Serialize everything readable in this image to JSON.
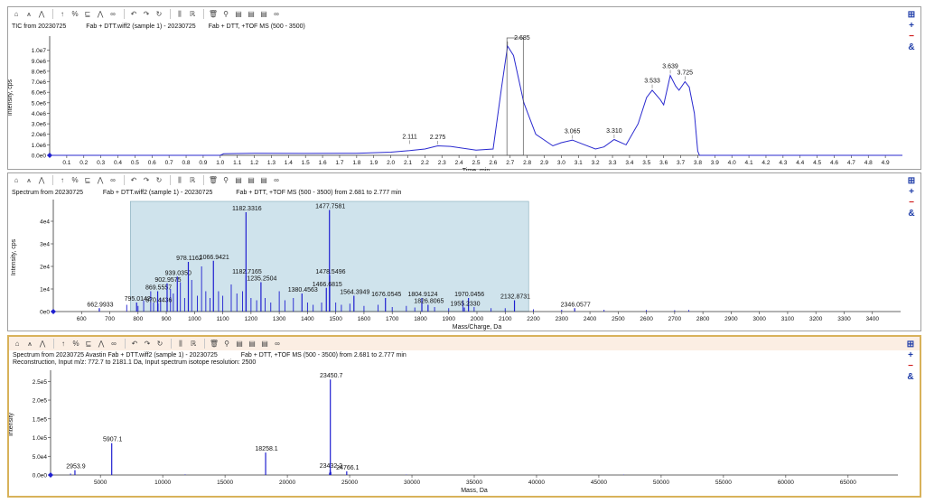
{
  "toolbar_icons": [
    "home-icon",
    "graph-icon",
    "stack-icon",
    "arrow-up-icon",
    "percent-icon",
    "peak-label-icon",
    "peak-icon",
    "link-icon",
    "undo-icon",
    "redo-icon",
    "redo-alt-icon",
    "bar-chart-icon",
    "reconstruct-icon",
    "trash-icon",
    "magnify-icon",
    "table-icon",
    "table-icon",
    "table-icon",
    "binoculars-icon"
  ],
  "side_tools": {
    "pin": "⊞",
    "plus": "+",
    "minus": "−",
    "link": "&"
  },
  "pane1": {
    "title_left": "TIC from 20230725",
    "title_mid": "Fab + DTT.wiff2 (sample 1) - 20230725",
    "title_right": "Fab + DTT, +TOF MS (500 - 3500)",
    "chart_data": {
      "type": "line",
      "xlabel": "Time, min",
      "ylabel": "Intensity, cps",
      "xlim": [
        0,
        5.0
      ],
      "ylim": [
        0,
        11000000.0
      ],
      "xticks": [
        "0.1",
        "0.2",
        "0.3",
        "0.4",
        "0.5",
        "0.6",
        "0.7",
        "0.8",
        "0.9",
        "1.0",
        "1.1",
        "1.2",
        "1.3",
        "1.4",
        "1.5",
        "1.6",
        "1.7",
        "1.8",
        "1.9",
        "2.0",
        "2.1",
        "2.2",
        "2.3",
        "2.4",
        "2.5",
        "2.6",
        "2.7",
        "2.8",
        "2.9",
        "3.0",
        "3.1",
        "3.2",
        "3.3",
        "3.4",
        "3.5",
        "3.6",
        "3.7",
        "3.8",
        "3.9",
        "4.0",
        "4.1",
        "4.2",
        "4.3",
        "4.4",
        "4.5",
        "4.6",
        "4.7",
        "4.8",
        "4.9"
      ],
      "yticks": [
        {
          "v": 0,
          "label": "0.0e0"
        },
        {
          "v": 1000000.0,
          "label": "1.0e6"
        },
        {
          "v": 2000000.0,
          "label": "2.0e6"
        },
        {
          "v": 3000000.0,
          "label": "3.0e6"
        },
        {
          "v": 4000000.0,
          "label": "4.0e6"
        },
        {
          "v": 5000000.0,
          "label": "5.0e6"
        },
        {
          "v": 6000000.0,
          "label": "6.0e6"
        },
        {
          "v": 7000000.0,
          "label": "7.0e6"
        },
        {
          "v": 8000000.0,
          "label": "8.0e6"
        },
        {
          "v": 9000000.0,
          "label": "9.0e6"
        },
        {
          "v": 10000000.0,
          "label": "1.0e7"
        }
      ],
      "points": [
        [
          0.0,
          0
        ],
        [
          1.0,
          0
        ],
        [
          1.02,
          150000.0
        ],
        [
          1.2,
          200000.0
        ],
        [
          1.5,
          180000.0
        ],
        [
          1.8,
          200000.0
        ],
        [
          2.0,
          300000.0
        ],
        [
          2.11,
          450000.0
        ],
        [
          2.2,
          600000.0
        ],
        [
          2.275,
          900000.0
        ],
        [
          2.35,
          850000.0
        ],
        [
          2.5,
          500000.0
        ],
        [
          2.6,
          600000.0
        ],
        [
          2.65,
          6500000.0
        ],
        [
          2.685,
          10400000.0
        ],
        [
          2.72,
          9500000.0
        ],
        [
          2.78,
          5000000.0
        ],
        [
          2.85,
          2000000.0
        ],
        [
          2.95,
          900000.0
        ],
        [
          3.0,
          1200000.0
        ],
        [
          3.065,
          1450000.0
        ],
        [
          3.12,
          1100000.0
        ],
        [
          3.2,
          600000.0
        ],
        [
          3.25,
          800000.0
        ],
        [
          3.31,
          1500000.0
        ],
        [
          3.38,
          1000000.0
        ],
        [
          3.45,
          3000000.0
        ],
        [
          3.5,
          5500000.0
        ],
        [
          3.533,
          6200000.0
        ],
        [
          3.58,
          5300000.0
        ],
        [
          3.6,
          4800000.0
        ],
        [
          3.639,
          7600000.0
        ],
        [
          3.67,
          6600000.0
        ],
        [
          3.69,
          6200000.0
        ],
        [
          3.725,
          7000000.0
        ],
        [
          3.75,
          6500000.0
        ],
        [
          3.78,
          4000000.0
        ],
        [
          3.8,
          400000.0
        ],
        [
          3.81,
          0
        ],
        [
          5.0,
          0
        ]
      ],
      "annotations": [
        {
          "x": 2.111,
          "y": 1000000.0,
          "label": "2.111"
        },
        {
          "x": 2.275,
          "y": 950000.0,
          "label": "2.275"
        },
        {
          "x": 2.685,
          "y": 10400000.0,
          "label": "2.685"
        },
        {
          "x": 3.065,
          "y": 1500000.0,
          "label": "3.065"
        },
        {
          "x": 3.31,
          "y": 1550000.0,
          "label": "3.310"
        },
        {
          "x": 3.533,
          "y": 6300000.0,
          "label": "3.533"
        },
        {
          "x": 3.639,
          "y": 7700000.0,
          "label": "3.639"
        },
        {
          "x": 3.725,
          "y": 7100000.0,
          "label": "3.725"
        }
      ],
      "selection": [
        2.681,
        2.777
      ],
      "color": "#2a2acf"
    }
  },
  "pane2": {
    "title_left": "Spectrum from 20230725",
    "title_mid": "Fab + DTT.wiff2 (sample 1) - 20230725",
    "title_right": "Fab + DTT, +TOF MS (500 - 3500) from 2.681 to 2.777 min",
    "chart_data": {
      "type": "bar",
      "xlabel": "Mass/Charge, Da",
      "ylabel": "Intensity, cps",
      "xlim": [
        500,
        3500
      ],
      "ylim": [
        0,
        48000
      ],
      "xticks": [
        "600",
        "700",
        "800",
        "900",
        "1000",
        "1100",
        "1200",
        "1300",
        "1400",
        "1500",
        "1600",
        "1700",
        "1800",
        "1900",
        "2000",
        "2100",
        "2200",
        "2300",
        "2400",
        "2500",
        "2600",
        "2700",
        "2800",
        "2900",
        "3000",
        "3100",
        "3200",
        "3300",
        "3400"
      ],
      "yticks": [
        {
          "v": 0,
          "label": "0e0"
        },
        {
          "v": 10000,
          "label": "1e4"
        },
        {
          "v": 20000,
          "label": "2e4"
        },
        {
          "v": 30000,
          "label": "3e4"
        },
        {
          "v": 40000,
          "label": "4e4"
        }
      ],
      "highlight": [
        773,
        2183
      ],
      "peaks": [
        [
          662.9933,
          1500,
          "662.9933"
        ],
        [
          795.0142,
          4000,
          "795.0142"
        ],
        [
          870.4436,
          3500,
          "870.4436"
        ],
        [
          869.5557,
          9000,
          "869.5557"
        ],
        [
          902.9575,
          12500,
          "902.9575"
        ],
        [
          939.035,
          15500,
          "939.0350"
        ],
        [
          978.1162,
          22000,
          "978.1162"
        ],
        [
          1066.9421,
          22500,
          "1066.9421"
        ],
        [
          1182.3316,
          44000,
          "1182.3316"
        ],
        [
          1182.7165,
          16000,
          "1182.7165"
        ],
        [
          1235.2504,
          13000,
          "1235.2504"
        ],
        [
          1380.4563,
          8000,
          "1380.4563"
        ],
        [
          1477.7581,
          45000,
          "1477.7581"
        ],
        [
          1478.5496,
          16000,
          "1478.5496"
        ],
        [
          1466.6815,
          10500,
          "1466.6815"
        ],
        [
          1564.3949,
          7000,
          "1564.3949"
        ],
        [
          1676.0545,
          6000,
          "1676.0545"
        ],
        [
          1804.9124,
          6000,
          "1804.9124"
        ],
        [
          1826.8065,
          3000,
          "1826.8065"
        ],
        [
          1970.0456,
          6000,
          "1970.0456"
        ],
        [
          1955.233,
          1800,
          "1955.2330"
        ],
        [
          2132.8731,
          5000,
          "2132.8731"
        ],
        [
          2346.0577,
          1500,
          "2346.0577"
        ]
      ],
      "minor": [
        [
          760,
          3000
        ],
        [
          800,
          2500
        ],
        [
          820,
          5000
        ],
        [
          845,
          9000
        ],
        [
          855,
          4000
        ],
        [
          880,
          6000
        ],
        [
          915,
          10000
        ],
        [
          925,
          8000
        ],
        [
          950,
          13000
        ],
        [
          965,
          6000
        ],
        [
          990,
          14000
        ],
        [
          1010,
          7000
        ],
        [
          1025,
          20000
        ],
        [
          1040,
          9000
        ],
        [
          1055,
          6000
        ],
        [
          1085,
          9000
        ],
        [
          1100,
          7000
        ],
        [
          1130,
          12000
        ],
        [
          1150,
          8000
        ],
        [
          1170,
          9000
        ],
        [
          1200,
          6000
        ],
        [
          1220,
          5000
        ],
        [
          1250,
          6000
        ],
        [
          1270,
          4000
        ],
        [
          1300,
          9000
        ],
        [
          1320,
          5000
        ],
        [
          1350,
          6000
        ],
        [
          1400,
          4000
        ],
        [
          1420,
          3000
        ],
        [
          1450,
          4000
        ],
        [
          1500,
          4000
        ],
        [
          1520,
          3000
        ],
        [
          1550,
          3500
        ],
        [
          1600,
          2500
        ],
        [
          1650,
          3000
        ],
        [
          1700,
          2000
        ],
        [
          1750,
          2500
        ],
        [
          1780,
          1800
        ],
        [
          1850,
          2000
        ],
        [
          1900,
          1500
        ],
        [
          1950,
          5000
        ],
        [
          1990,
          2000
        ],
        [
          2050,
          1500
        ],
        [
          2100,
          1500
        ],
        [
          2200,
          1000
        ],
        [
          2300,
          800
        ],
        [
          2450,
          800
        ],
        [
          2600,
          700
        ],
        [
          2700,
          600
        ],
        [
          2750,
          700
        ]
      ],
      "color": "#1f1fd0",
      "highlight_color": "#cfe3ec"
    }
  },
  "pane3": {
    "title_left": "Spectrum from 20230725 Avastin Fab + DTT.wiff2 (sample 1) - 20230725",
    "title_right": "Fab + DTT, +TOF MS (500 - 3500) from 2.681 to 2.777 min",
    "title_line2": "Reconstruction, Input m/z: 772.7 to 2181.1 Da, Input spectrum isotope resolution: 2500",
    "chart_data": {
      "type": "bar",
      "xlabel": "Mass, Da",
      "ylabel": "Intensity",
      "xlim": [
        1000,
        69000
      ],
      "ylim": [
        0,
        270000
      ],
      "xticks": [
        "5000",
        "10000",
        "15000",
        "20000",
        "25000",
        "30000",
        "35000",
        "40000",
        "45000",
        "50000",
        "55000",
        "60000",
        "65000"
      ],
      "yticks": [
        {
          "v": 0,
          "label": "0.0e0"
        },
        {
          "v": 50000,
          "label": "5.0e4"
        },
        {
          "v": 100000,
          "label": "1.0e5"
        },
        {
          "v": 150000,
          "label": "1.5e5"
        },
        {
          "v": 200000,
          "label": "2.0e5"
        },
        {
          "v": 250000,
          "label": "2.5e5"
        }
      ],
      "peaks": [
        [
          2953.9,
          13000,
          "2953.9"
        ],
        [
          5907.1,
          85000,
          "5907.1"
        ],
        [
          18258.1,
          60000,
          "18258.1"
        ],
        [
          23432.2,
          14000,
          "23432.2"
        ],
        [
          23450.7,
          255000,
          "23450.7"
        ],
        [
          24766.1,
          10000,
          "24766.1"
        ]
      ],
      "minor": [
        [
          2600,
          4000
        ],
        [
          23380,
          6000
        ],
        [
          23500,
          8000
        ],
        [
          11800,
          1500
        ],
        [
          29550,
          1200
        ],
        [
          47000,
          800
        ]
      ],
      "color": "#1f1fd0"
    }
  }
}
